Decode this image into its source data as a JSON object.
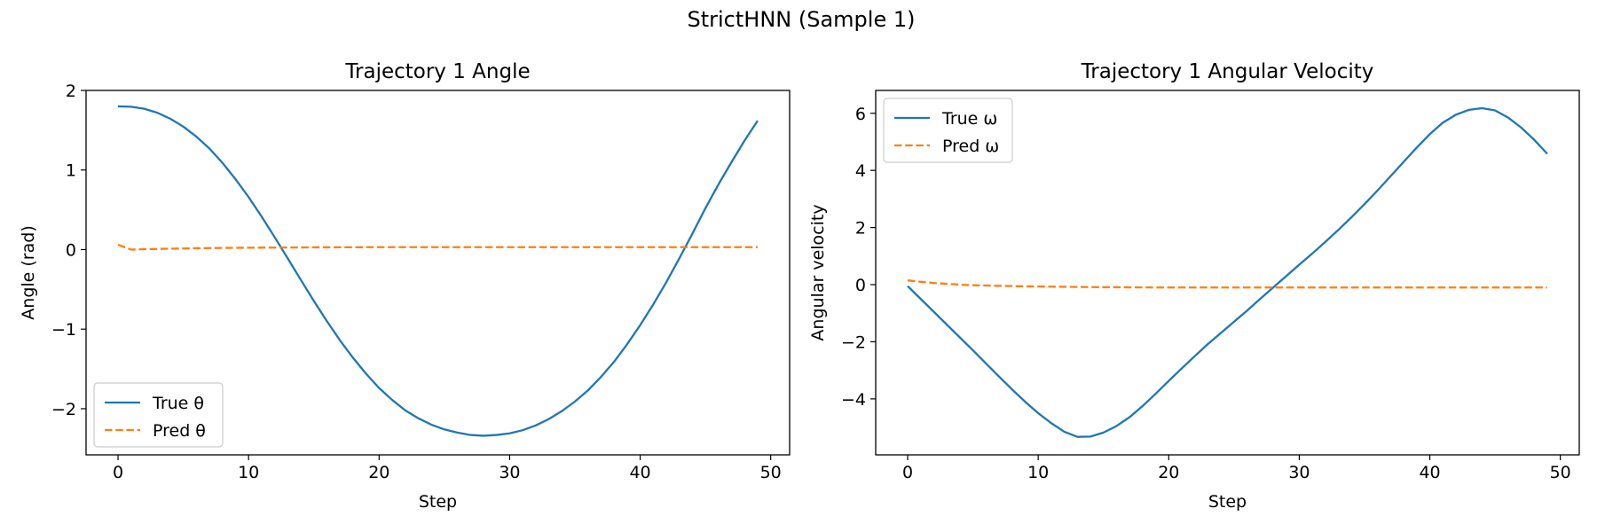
{
  "figure": {
    "suptitle": "StrictHNN (Sample 1)"
  },
  "chart_data": [
    {
      "type": "line",
      "title": "Trajectory 1 Angle",
      "xlabel": "Step",
      "ylabel": "Angle (rad)",
      "xlim": [
        -2.45,
        51.45
      ],
      "ylim": [
        -2.58,
        2.0
      ],
      "xticks": [
        0,
        10,
        20,
        30,
        40,
        50
      ],
      "yticks": [
        -2,
        -1,
        0,
        1,
        2
      ],
      "legend_position": "lower-left",
      "grid": false,
      "x": [
        0,
        1,
        2,
        3,
        4,
        5,
        6,
        7,
        8,
        9,
        10,
        11,
        12,
        13,
        14,
        15,
        16,
        17,
        18,
        19,
        20,
        21,
        22,
        23,
        24,
        25,
        26,
        27,
        28,
        29,
        30,
        31,
        32,
        33,
        34,
        35,
        36,
        37,
        38,
        39,
        40,
        41,
        42,
        43,
        44,
        45,
        46,
        47,
        48,
        49
      ],
      "series": [
        {
          "name": "True θ",
          "color": "#1f77b4",
          "dash": "solid",
          "values": [
            1.8,
            1.795,
            1.77,
            1.72,
            1.645,
            1.545,
            1.42,
            1.27,
            1.09,
            0.885,
            0.66,
            0.415,
            0.155,
            -0.11,
            -0.38,
            -0.645,
            -0.9,
            -1.14,
            -1.36,
            -1.56,
            -1.74,
            -1.89,
            -2.02,
            -2.12,
            -2.2,
            -2.26,
            -2.3,
            -2.33,
            -2.34,
            -2.33,
            -2.31,
            -2.27,
            -2.21,
            -2.13,
            -2.03,
            -1.91,
            -1.77,
            -1.6,
            -1.41,
            -1.19,
            -0.95,
            -0.69,
            -0.41,
            -0.11,
            0.2,
            0.52,
            0.82,
            1.1,
            1.37,
            1.62
          ]
        },
        {
          "name": "Pred θ",
          "color": "#ff7f0e",
          "dash": "dashed",
          "values": [
            0.06,
            0.0,
            0.005,
            0.008,
            0.011,
            0.014,
            0.017,
            0.019,
            0.021,
            0.022,
            0.023,
            0.024,
            0.025,
            0.026,
            0.027,
            0.028,
            0.028,
            0.029,
            0.029,
            0.03,
            0.03,
            0.03,
            0.03,
            0.03,
            0.03,
            0.03,
            0.03,
            0.03,
            0.03,
            0.03,
            0.03,
            0.03,
            0.03,
            0.03,
            0.03,
            0.03,
            0.03,
            0.03,
            0.03,
            0.03,
            0.03,
            0.03,
            0.03,
            0.03,
            0.03,
            0.03,
            0.03,
            0.03,
            0.03,
            0.03
          ]
        }
      ]
    },
    {
      "type": "line",
      "title": "Trajectory 1 Angular Velocity",
      "xlabel": "Step",
      "ylabel": "Angular velocity",
      "xlim": [
        -2.45,
        51.45
      ],
      "ylim": [
        -5.96,
        6.8
      ],
      "xticks": [
        0,
        10,
        20,
        30,
        40,
        50
      ],
      "yticks": [
        -4,
        -2,
        0,
        2,
        4,
        6
      ],
      "legend_position": "top-left",
      "grid": false,
      "x": [
        0,
        1,
        2,
        3,
        4,
        5,
        6,
        7,
        8,
        9,
        10,
        11,
        12,
        13,
        14,
        15,
        16,
        17,
        18,
        19,
        20,
        21,
        22,
        23,
        24,
        25,
        26,
        27,
        28,
        29,
        30,
        31,
        32,
        33,
        34,
        35,
        36,
        37,
        38,
        39,
        40,
        41,
        42,
        43,
        44,
        45,
        46,
        47,
        48,
        49
      ],
      "series": [
        {
          "name": "True ω",
          "color": "#1f77b4",
          "dash": "solid",
          "values": [
            -0.05,
            -0.5,
            -0.95,
            -1.4,
            -1.85,
            -2.3,
            -2.76,
            -3.22,
            -3.67,
            -4.1,
            -4.5,
            -4.85,
            -5.15,
            -5.33,
            -5.32,
            -5.18,
            -4.95,
            -4.64,
            -4.25,
            -3.82,
            -3.37,
            -2.93,
            -2.5,
            -2.08,
            -1.69,
            -1.3,
            -0.91,
            -0.5,
            -0.1,
            0.3,
            0.7,
            1.09,
            1.5,
            1.92,
            2.36,
            2.82,
            3.3,
            3.8,
            4.3,
            4.8,
            5.27,
            5.67,
            5.95,
            6.12,
            6.18,
            6.1,
            5.85,
            5.5,
            5.07,
            4.58
          ]
        },
        {
          "name": "Pred ω",
          "color": "#ff7f0e",
          "dash": "dashed",
          "values": [
            0.15,
            0.1,
            0.06,
            0.03,
            0.0,
            -0.02,
            -0.03,
            -0.04,
            -0.05,
            -0.06,
            -0.065,
            -0.07,
            -0.075,
            -0.08,
            -0.085,
            -0.09,
            -0.09,
            -0.095,
            -0.095,
            -0.1,
            -0.1,
            -0.1,
            -0.1,
            -0.1,
            -0.1,
            -0.1,
            -0.1,
            -0.1,
            -0.1,
            -0.1,
            -0.1,
            -0.1,
            -0.1,
            -0.1,
            -0.1,
            -0.1,
            -0.1,
            -0.1,
            -0.1,
            -0.1,
            -0.1,
            -0.1,
            -0.1,
            -0.1,
            -0.1,
            -0.1,
            -0.1,
            -0.1,
            -0.1,
            -0.1
          ]
        }
      ]
    }
  ]
}
